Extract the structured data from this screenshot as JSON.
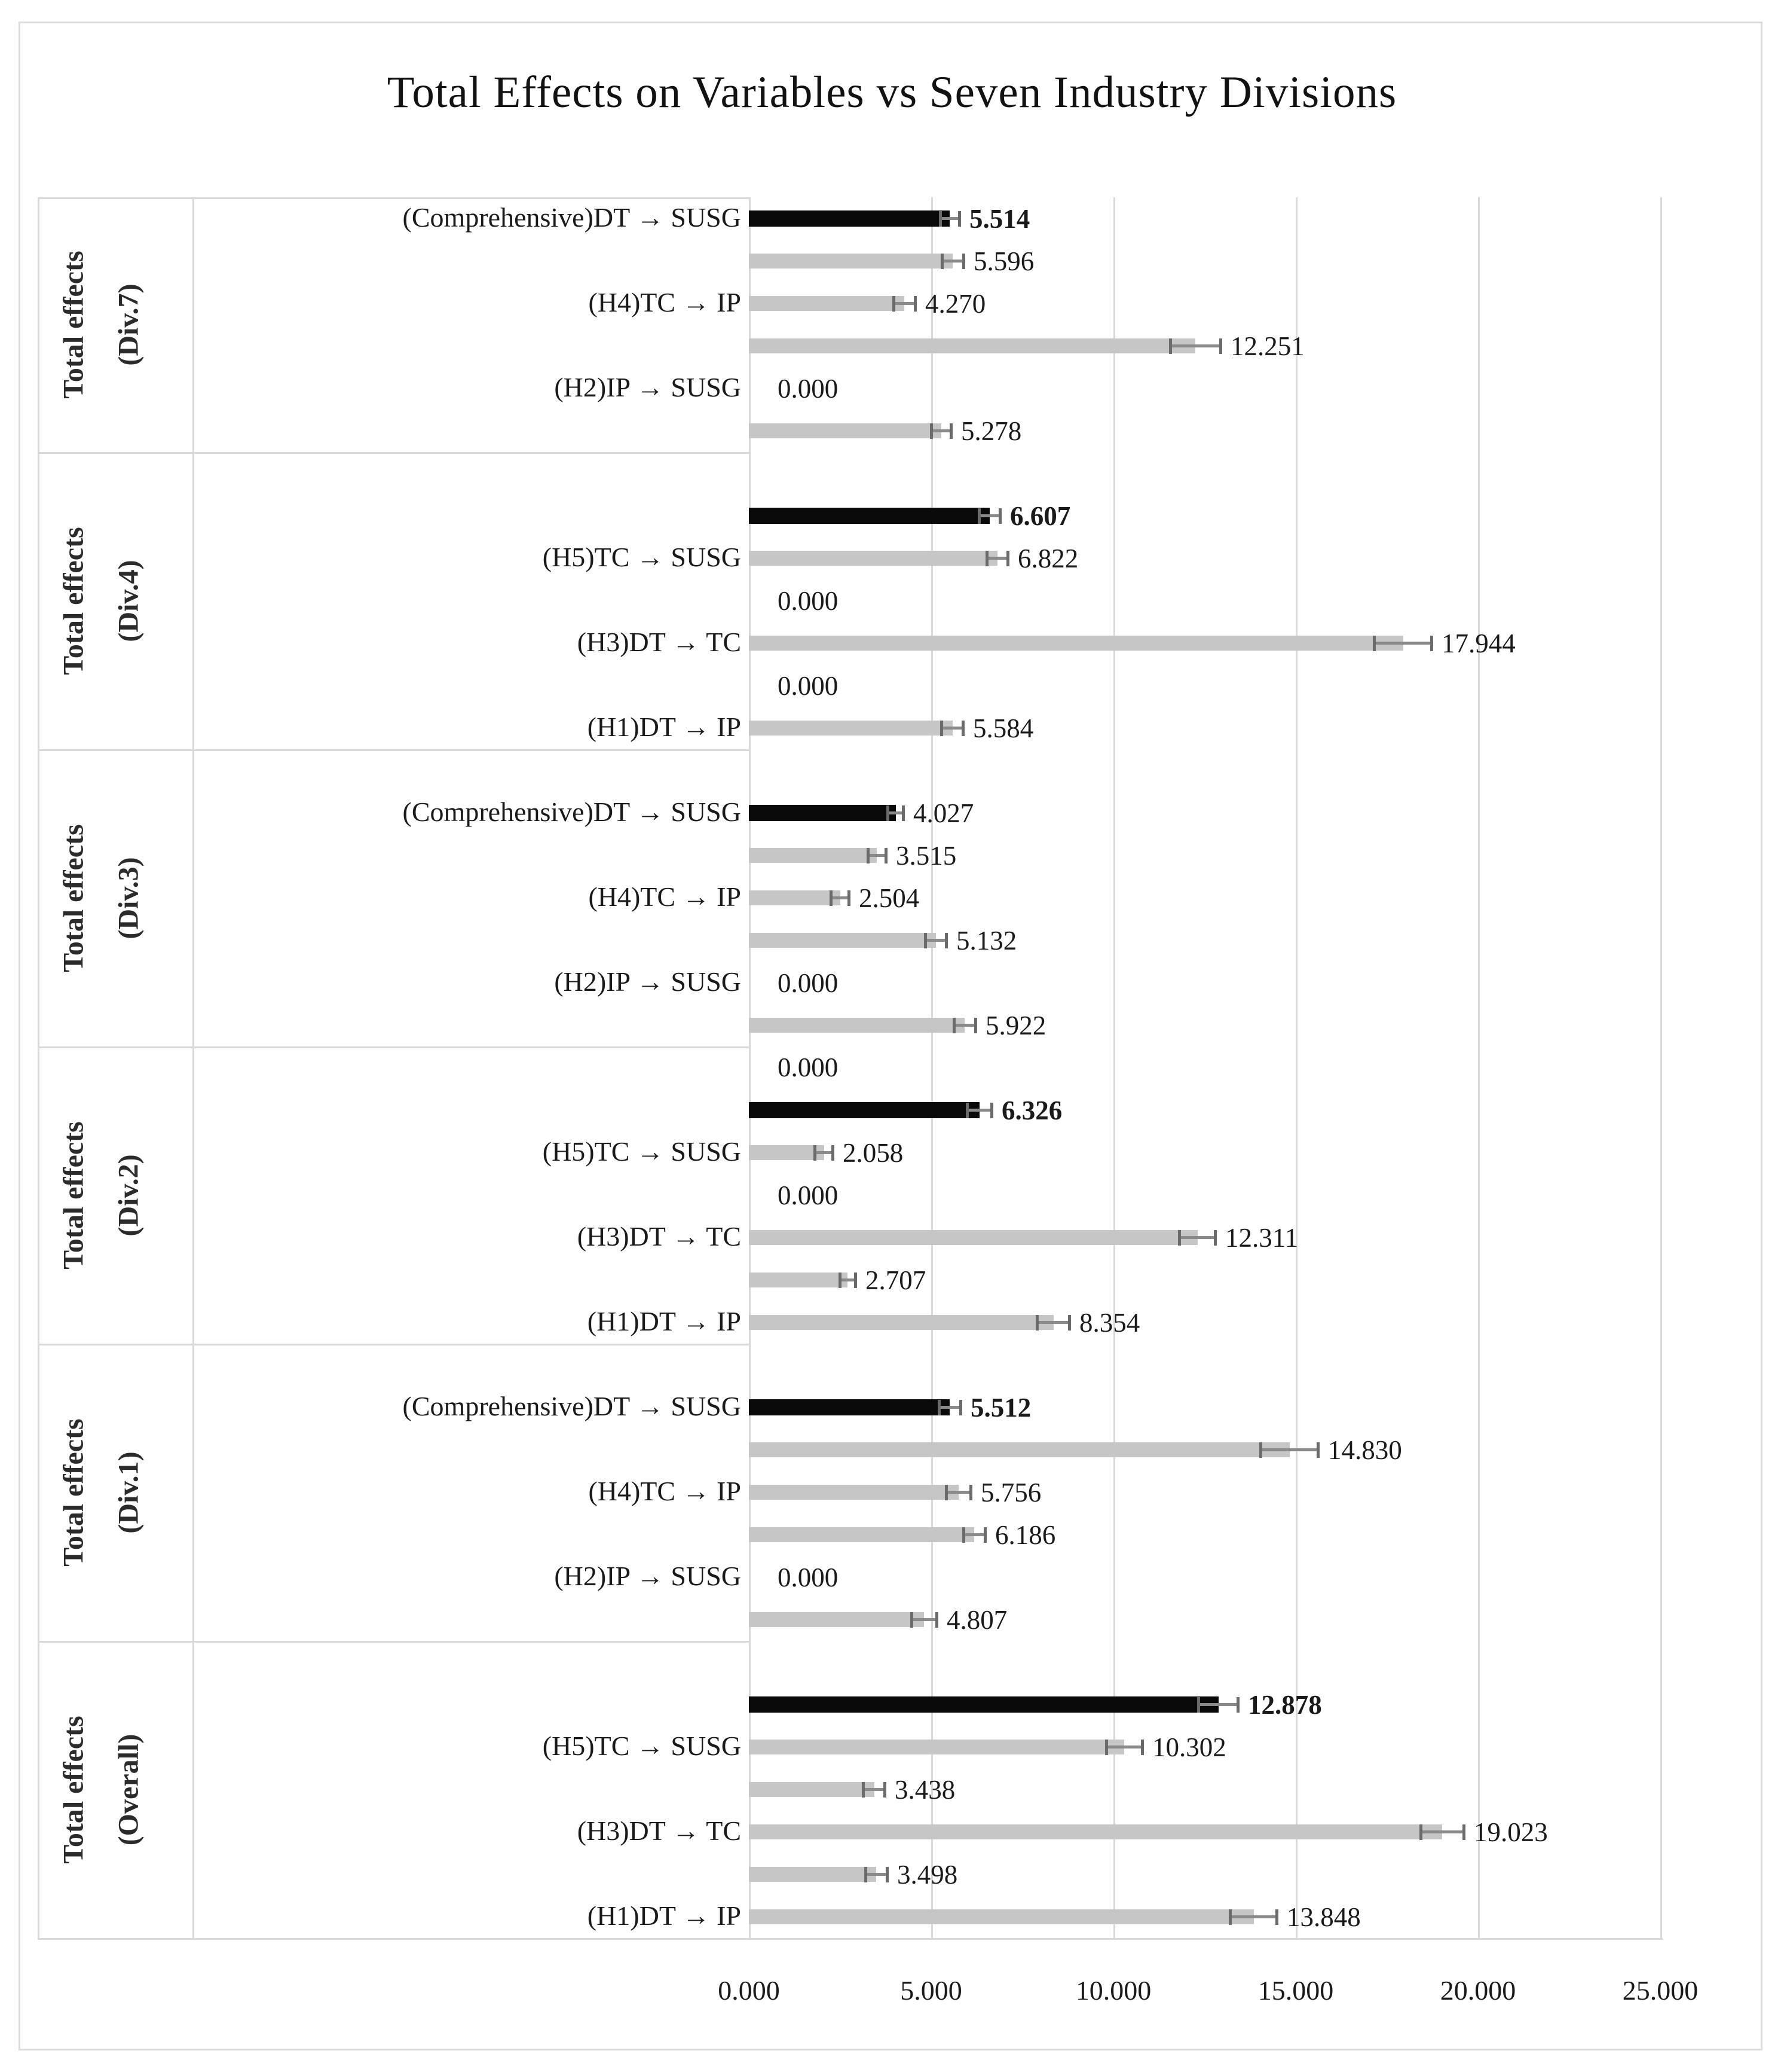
{
  "chart_data": {
    "type": "bar",
    "orientation": "horizontal",
    "title": "Total Effects on Variables vs Seven Industry Divisions",
    "xlabel": "",
    "ylabel": "",
    "xlim": [
      0,
      25
    ],
    "x_tick_values": [
      0,
      5,
      10,
      15,
      20,
      25
    ],
    "x_tick_labels": [
      "0.000",
      "5.000",
      "10.000",
      "15.000",
      "20.000",
      "25.000"
    ],
    "grid": "vertical",
    "legend": "none",
    "bar_color": "#c6c6c6",
    "highlight_color": "#0a0a0a",
    "gridline_color": "#d9d9d9",
    "error_bar_color": "#6b6b6b",
    "groups": [
      {
        "group_line1": "Total effects",
        "group_line2": "(Div.7)",
        "leading_spacer": false,
        "spacer_label": "",
        "bars": [
          {
            "label": "(Comprehensive)DT → SUSG",
            "show_label": true,
            "value": 5.514,
            "display": "5.514",
            "error": 0.27,
            "black": true,
            "bold_value": true
          },
          {
            "label": "(H5)TC → SUSG",
            "show_label": false,
            "value": 5.596,
            "display": "5.596",
            "error": 0.3,
            "black": false,
            "bold_value": false
          },
          {
            "label": "(H4)TC → IP",
            "show_label": true,
            "value": 4.27,
            "display": "4.270",
            "error": 0.3,
            "black": false,
            "bold_value": false
          },
          {
            "label": "(H3)DT → TC",
            "show_label": false,
            "value": 12.251,
            "display": "12.251",
            "error": 0.7,
            "black": false,
            "bold_value": false
          },
          {
            "label": "(H2)IP → SUSG",
            "show_label": true,
            "value": 0.0,
            "display": "0.000",
            "error": 0,
            "black": false,
            "bold_value": false
          },
          {
            "label": "(H1)DT → IP",
            "show_label": false,
            "value": 5.278,
            "display": "5.278",
            "error": 0.28,
            "black": false,
            "bold_value": false
          }
        ]
      },
      {
        "group_line1": "Total effects",
        "group_line2": "(Div.4)",
        "leading_spacer": true,
        "spacer_label": "",
        "bars": [
          {
            "label": "(Comprehensive)DT → SUSG",
            "show_label": false,
            "value": 6.607,
            "display": "6.607",
            "error": 0.3,
            "black": true,
            "bold_value": true
          },
          {
            "label": "(H5)TC → SUSG",
            "show_label": true,
            "value": 6.822,
            "display": "6.822",
            "error": 0.3,
            "black": false,
            "bold_value": false
          },
          {
            "label": "(H4)TC → IP",
            "show_label": false,
            "value": 0.0,
            "display": "0.000",
            "error": 0,
            "black": false,
            "bold_value": false
          },
          {
            "label": "(H3)DT → TC",
            "show_label": true,
            "value": 17.944,
            "display": "17.944",
            "error": 0.8,
            "black": false,
            "bold_value": false
          },
          {
            "label": "(H2)IP → SUSG",
            "show_label": false,
            "value": 0.0,
            "display": "0.000",
            "error": 0,
            "black": false,
            "bold_value": false
          },
          {
            "label": "(H1)DT → IP",
            "show_label": true,
            "value": 5.584,
            "display": "5.584",
            "error": 0.3,
            "black": false,
            "bold_value": false
          }
        ]
      },
      {
        "group_line1": "Total effects",
        "group_line2": "(Div.3)",
        "leading_spacer": true,
        "spacer_label": "",
        "bars": [
          {
            "label": "(Comprehensive)DT → SUSG",
            "show_label": true,
            "value": 4.027,
            "display": "4.027",
            "error": 0.22,
            "black": true,
            "bold_value": false
          },
          {
            "label": "(H5)TC → SUSG",
            "show_label": false,
            "value": 3.515,
            "display": "3.515",
            "error": 0.25,
            "black": false,
            "bold_value": false
          },
          {
            "label": "(H4)TC → IP",
            "show_label": true,
            "value": 2.504,
            "display": "2.504",
            "error": 0.25,
            "black": false,
            "bold_value": false
          },
          {
            "label": "(H3)DT → TC",
            "show_label": false,
            "value": 5.132,
            "display": "5.132",
            "error": 0.3,
            "black": false,
            "bold_value": false
          },
          {
            "label": "(H2)IP → SUSG",
            "show_label": true,
            "value": 0.0,
            "display": "0.000",
            "error": 0,
            "black": false,
            "bold_value": false
          },
          {
            "label": "(H1)DT → IP",
            "show_label": false,
            "value": 5.922,
            "display": "5.922",
            "error": 0.3,
            "black": false,
            "bold_value": false
          }
        ]
      },
      {
        "group_line1": "Total effects",
        "group_line2": "(Div.2)",
        "leading_spacer": true,
        "spacer_label": "0.000",
        "bars": [
          {
            "label": "(Comprehensive)DT → SUSG",
            "show_label": false,
            "value": 6.326,
            "display": "6.326",
            "error": 0.35,
            "black": true,
            "bold_value": true
          },
          {
            "label": "(H5)TC → SUSG",
            "show_label": true,
            "value": 2.058,
            "display": "2.058",
            "error": 0.25,
            "black": false,
            "bold_value": false
          },
          {
            "label": "(H4)TC → IP",
            "show_label": false,
            "value": 0.0,
            "display": "0.000",
            "error": 0,
            "black": false,
            "bold_value": false
          },
          {
            "label": "(H3)DT → TC",
            "show_label": true,
            "value": 12.311,
            "display": "12.311",
            "error": 0.5,
            "black": false,
            "bold_value": false
          },
          {
            "label": "(H2)IP → SUSG",
            "show_label": false,
            "value": 2.707,
            "display": "2.707",
            "error": 0.22,
            "black": false,
            "bold_value": false
          },
          {
            "label": "(H1)DT → IP",
            "show_label": true,
            "value": 8.354,
            "display": "8.354",
            "error": 0.45,
            "black": false,
            "bold_value": false
          }
        ]
      },
      {
        "group_line1": "Total effects",
        "group_line2": "(Div.1)",
        "leading_spacer": true,
        "spacer_label": "",
        "bars": [
          {
            "label": "(Comprehensive)DT → SUSG",
            "show_label": true,
            "value": 5.512,
            "display": "5.512",
            "error": 0.3,
            "black": true,
            "bold_value": true
          },
          {
            "label": "(H5)TC → SUSG",
            "show_label": false,
            "value": 14.83,
            "display": "14.830",
            "error": 0.8,
            "black": false,
            "bold_value": false
          },
          {
            "label": "(H4)TC → IP",
            "show_label": true,
            "value": 5.756,
            "display": "5.756",
            "error": 0.35,
            "black": false,
            "bold_value": false
          },
          {
            "label": "(H3)DT → TC",
            "show_label": false,
            "value": 6.186,
            "display": "6.186",
            "error": 0.3,
            "black": false,
            "bold_value": false
          },
          {
            "label": "(H2)IP → SUSG",
            "show_label": true,
            "value": 0.0,
            "display": "0.000",
            "error": 0,
            "black": false,
            "bold_value": false
          },
          {
            "label": "(H1)DT → IP",
            "show_label": false,
            "value": 4.807,
            "display": "4.807",
            "error": 0.35,
            "black": false,
            "bold_value": false
          }
        ]
      },
      {
        "group_line1": "Total effects",
        "group_line2": "(Overall)",
        "leading_spacer": true,
        "spacer_label": "",
        "bars": [
          {
            "label": "(Comprehensive)DT → SUSG",
            "show_label": false,
            "value": 12.878,
            "display": "12.878",
            "error": 0.55,
            "black": true,
            "bold_value": true
          },
          {
            "label": "(H5)TC → SUSG",
            "show_label": true,
            "value": 10.302,
            "display": "10.302",
            "error": 0.5,
            "black": false,
            "bold_value": false
          },
          {
            "label": "(H4)TC → IP",
            "show_label": false,
            "value": 3.438,
            "display": "3.438",
            "error": 0.3,
            "black": false,
            "bold_value": false
          },
          {
            "label": "(H3)DT → TC",
            "show_label": true,
            "value": 19.023,
            "display": "19.023",
            "error": 0.6,
            "black": false,
            "bold_value": false
          },
          {
            "label": "(H2)IP → SUSG",
            "show_label": false,
            "value": 3.498,
            "display": "3.498",
            "error": 0.3,
            "black": false,
            "bold_value": false
          },
          {
            "label": "(H1)DT → IP",
            "show_label": true,
            "value": 13.848,
            "display": "13.848",
            "error": 0.65,
            "black": false,
            "bold_value": false
          }
        ]
      }
    ]
  }
}
